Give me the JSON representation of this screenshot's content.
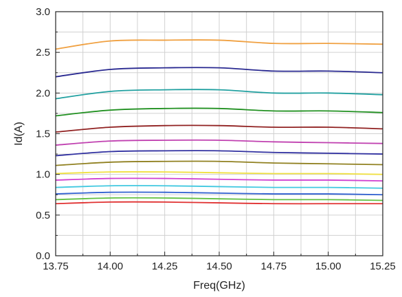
{
  "chart_data": {
    "type": "line",
    "xlabel": "Freq(GHz)",
    "ylabel": "Id(A)",
    "xlim": [
      13.75,
      15.25
    ],
    "ylim": [
      0.0,
      3.0
    ],
    "grid": true,
    "legend": "none",
    "x_ticks": [
      "13.75",
      "14.00",
      "14.25",
      "14.50",
      "14.75",
      "15.00",
      "15.25"
    ],
    "y_ticks": [
      "0.0",
      "0.5",
      "1.0",
      "1.5",
      "2.0",
      "2.5",
      "3.0"
    ],
    "x": [
      13.75,
      14.0,
      14.25,
      14.5,
      14.75,
      15.0,
      15.25
    ],
    "series": [
      {
        "color": "#e03030",
        "values": [
          0.64,
          0.66,
          0.66,
          0.65,
          0.64,
          0.64,
          0.64
        ]
      },
      {
        "color": "#60c040",
        "values": [
          0.69,
          0.71,
          0.71,
          0.7,
          0.69,
          0.69,
          0.68
        ]
      },
      {
        "color": "#3060d0",
        "values": [
          0.76,
          0.78,
          0.78,
          0.77,
          0.76,
          0.76,
          0.75
        ]
      },
      {
        "color": "#40c8e0",
        "values": [
          0.84,
          0.86,
          0.86,
          0.85,
          0.84,
          0.84,
          0.83
        ]
      },
      {
        "color": "#d040d0",
        "values": [
          0.93,
          0.95,
          0.95,
          0.94,
          0.93,
          0.93,
          0.92
        ]
      },
      {
        "color": "#f0e040",
        "values": [
          1.01,
          1.03,
          1.03,
          1.02,
          1.01,
          1.01,
          1.0
        ]
      },
      {
        "color": "#908020",
        "values": [
          1.11,
          1.15,
          1.16,
          1.16,
          1.14,
          1.13,
          1.12
        ]
      },
      {
        "color": "#3030a0",
        "values": [
          1.23,
          1.28,
          1.29,
          1.29,
          1.27,
          1.26,
          1.25
        ]
      },
      {
        "color": "#c040b0",
        "values": [
          1.36,
          1.41,
          1.42,
          1.42,
          1.4,
          1.39,
          1.38
        ]
      },
      {
        "color": "#902020",
        "values": [
          1.52,
          1.58,
          1.6,
          1.6,
          1.58,
          1.58,
          1.56
        ]
      },
      {
        "color": "#209020",
        "values": [
          1.72,
          1.79,
          1.81,
          1.81,
          1.78,
          1.78,
          1.76
        ]
      },
      {
        "color": "#20a0a0",
        "values": [
          1.93,
          2.02,
          2.04,
          2.04,
          2.0,
          2.0,
          1.98
        ]
      },
      {
        "color": "#282890",
        "values": [
          2.2,
          2.29,
          2.31,
          2.31,
          2.27,
          2.27,
          2.25
        ]
      },
      {
        "color": "#f0a040",
        "values": [
          2.54,
          2.64,
          2.65,
          2.65,
          2.61,
          2.61,
          2.6
        ]
      }
    ]
  }
}
